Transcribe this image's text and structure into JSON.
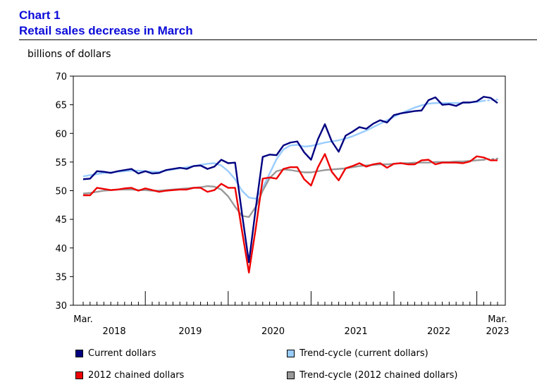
{
  "chart_number": "Chart 1",
  "chart_title": "Retail sales decrease in March",
  "chart_data": {
    "type": "line",
    "title": "Retail sales decrease in March",
    "ylabel": "billions of dollars",
    "xlabel": "",
    "ylim": [
      30,
      70
    ],
    "y_ticks": [
      30,
      35,
      40,
      45,
      50,
      55,
      60,
      65,
      70
    ],
    "x_edge_labels": {
      "start": "Mar.",
      "end": "Mar."
    },
    "year_labels": [
      "2018",
      "2019",
      "2020",
      "2021",
      "2022",
      "2023"
    ],
    "x_start": "2018-03",
    "x_end": "2023-03",
    "grid": false,
    "legend_position": "bottom",
    "series": [
      {
        "name": "Current dollars",
        "color": "#000080",
        "values": [
          52.0,
          52.1,
          53.4,
          53.3,
          53.1,
          53.4,
          53.6,
          53.8,
          53.0,
          53.4,
          53.0,
          53.1,
          53.6,
          53.8,
          54.0,
          53.8,
          54.3,
          54.4,
          53.8,
          54.2,
          55.4,
          54.8,
          54.9,
          46.0,
          37.5,
          47.0,
          55.9,
          56.3,
          56.2,
          57.9,
          58.4,
          58.6,
          56.7,
          55.4,
          59.0,
          61.6,
          58.6,
          56.8,
          59.6,
          60.3,
          61.1,
          60.8,
          61.7,
          62.3,
          61.9,
          63.2,
          63.5,
          63.7,
          63.9,
          64.0,
          65.8,
          66.3,
          65.0,
          65.1,
          64.8,
          65.4,
          65.4,
          65.6,
          66.4,
          66.2,
          65.3
        ]
      },
      {
        "name": "Trend-cycle (current dollars)",
        "color": "#99ccff",
        "dashed_from": "2023-01",
        "values": [
          52.5,
          52.7,
          52.9,
          53.1,
          53.2,
          53.3,
          53.4,
          53.5,
          53.5,
          53.4,
          53.3,
          53.3,
          53.5,
          53.7,
          53.9,
          54.1,
          54.3,
          54.5,
          54.7,
          54.8,
          54.4,
          53.4,
          52.0,
          50.0,
          48.8,
          48.6,
          50.5,
          53.0,
          55.5,
          57.2,
          57.9,
          58.0,
          57.7,
          57.8,
          58.1,
          58.4,
          58.6,
          58.8,
          59.1,
          59.5,
          60.0,
          60.5,
          61.1,
          61.7,
          62.3,
          62.9,
          63.5,
          64.0,
          64.5,
          64.9,
          65.2,
          65.3,
          65.3,
          65.3,
          65.3,
          65.3,
          65.4,
          65.5,
          65.7,
          65.8,
          65.9
        ]
      },
      {
        "name": "2012 chained dollars",
        "color": "#ee0000",
        "values": [
          49.2,
          49.2,
          50.5,
          50.3,
          50.1,
          50.2,
          50.4,
          50.5,
          50.0,
          50.4,
          50.1,
          49.8,
          50.0,
          50.1,
          50.2,
          50.2,
          50.5,
          50.5,
          49.8,
          50.1,
          51.2,
          50.5,
          50.5,
          43.0,
          35.7,
          43.5,
          52.1,
          52.3,
          52.1,
          53.8,
          54.1,
          54.1,
          52.0,
          50.9,
          54.1,
          56.4,
          53.3,
          51.8,
          53.9,
          54.3,
          54.8,
          54.2,
          54.6,
          54.8,
          54.0,
          54.7,
          54.8,
          54.6,
          54.6,
          55.3,
          55.4,
          54.6,
          54.9,
          54.9,
          54.9,
          54.8,
          55.1,
          56.0,
          55.8,
          55.3,
          55.3
        ]
      },
      {
        "name": "Trend-cycle (2012 chained dollars)",
        "color": "#999999",
        "dashed_from": "2023-01",
        "values": [
          49.5,
          49.6,
          49.8,
          50.0,
          50.1,
          50.2,
          50.2,
          50.2,
          50.1,
          50.1,
          50.0,
          50.0,
          50.1,
          50.2,
          50.3,
          50.4,
          50.5,
          50.6,
          50.8,
          50.7,
          50.2,
          49.0,
          47.2,
          45.6,
          45.4,
          47.2,
          50.0,
          52.2,
          53.4,
          53.7,
          53.6,
          53.4,
          53.2,
          53.2,
          53.4,
          53.6,
          53.7,
          53.8,
          53.9,
          54.1,
          54.3,
          54.4,
          54.5,
          54.6,
          54.6,
          54.7,
          54.8,
          54.8,
          54.9,
          54.9,
          54.9,
          55.0,
          55.0,
          55.0,
          55.1,
          55.1,
          55.2,
          55.3,
          55.4,
          55.5,
          55.6
        ]
      }
    ]
  },
  "legend": [
    {
      "label": "Current dollars",
      "color": "#000080"
    },
    {
      "label": "Trend-cycle (current dollars)",
      "color": "#99ccff"
    },
    {
      "label": "2012 chained dollars",
      "color": "#ee0000"
    },
    {
      "label": "Trend-cycle (2012 chained dollars)",
      "color": "#999999"
    }
  ]
}
